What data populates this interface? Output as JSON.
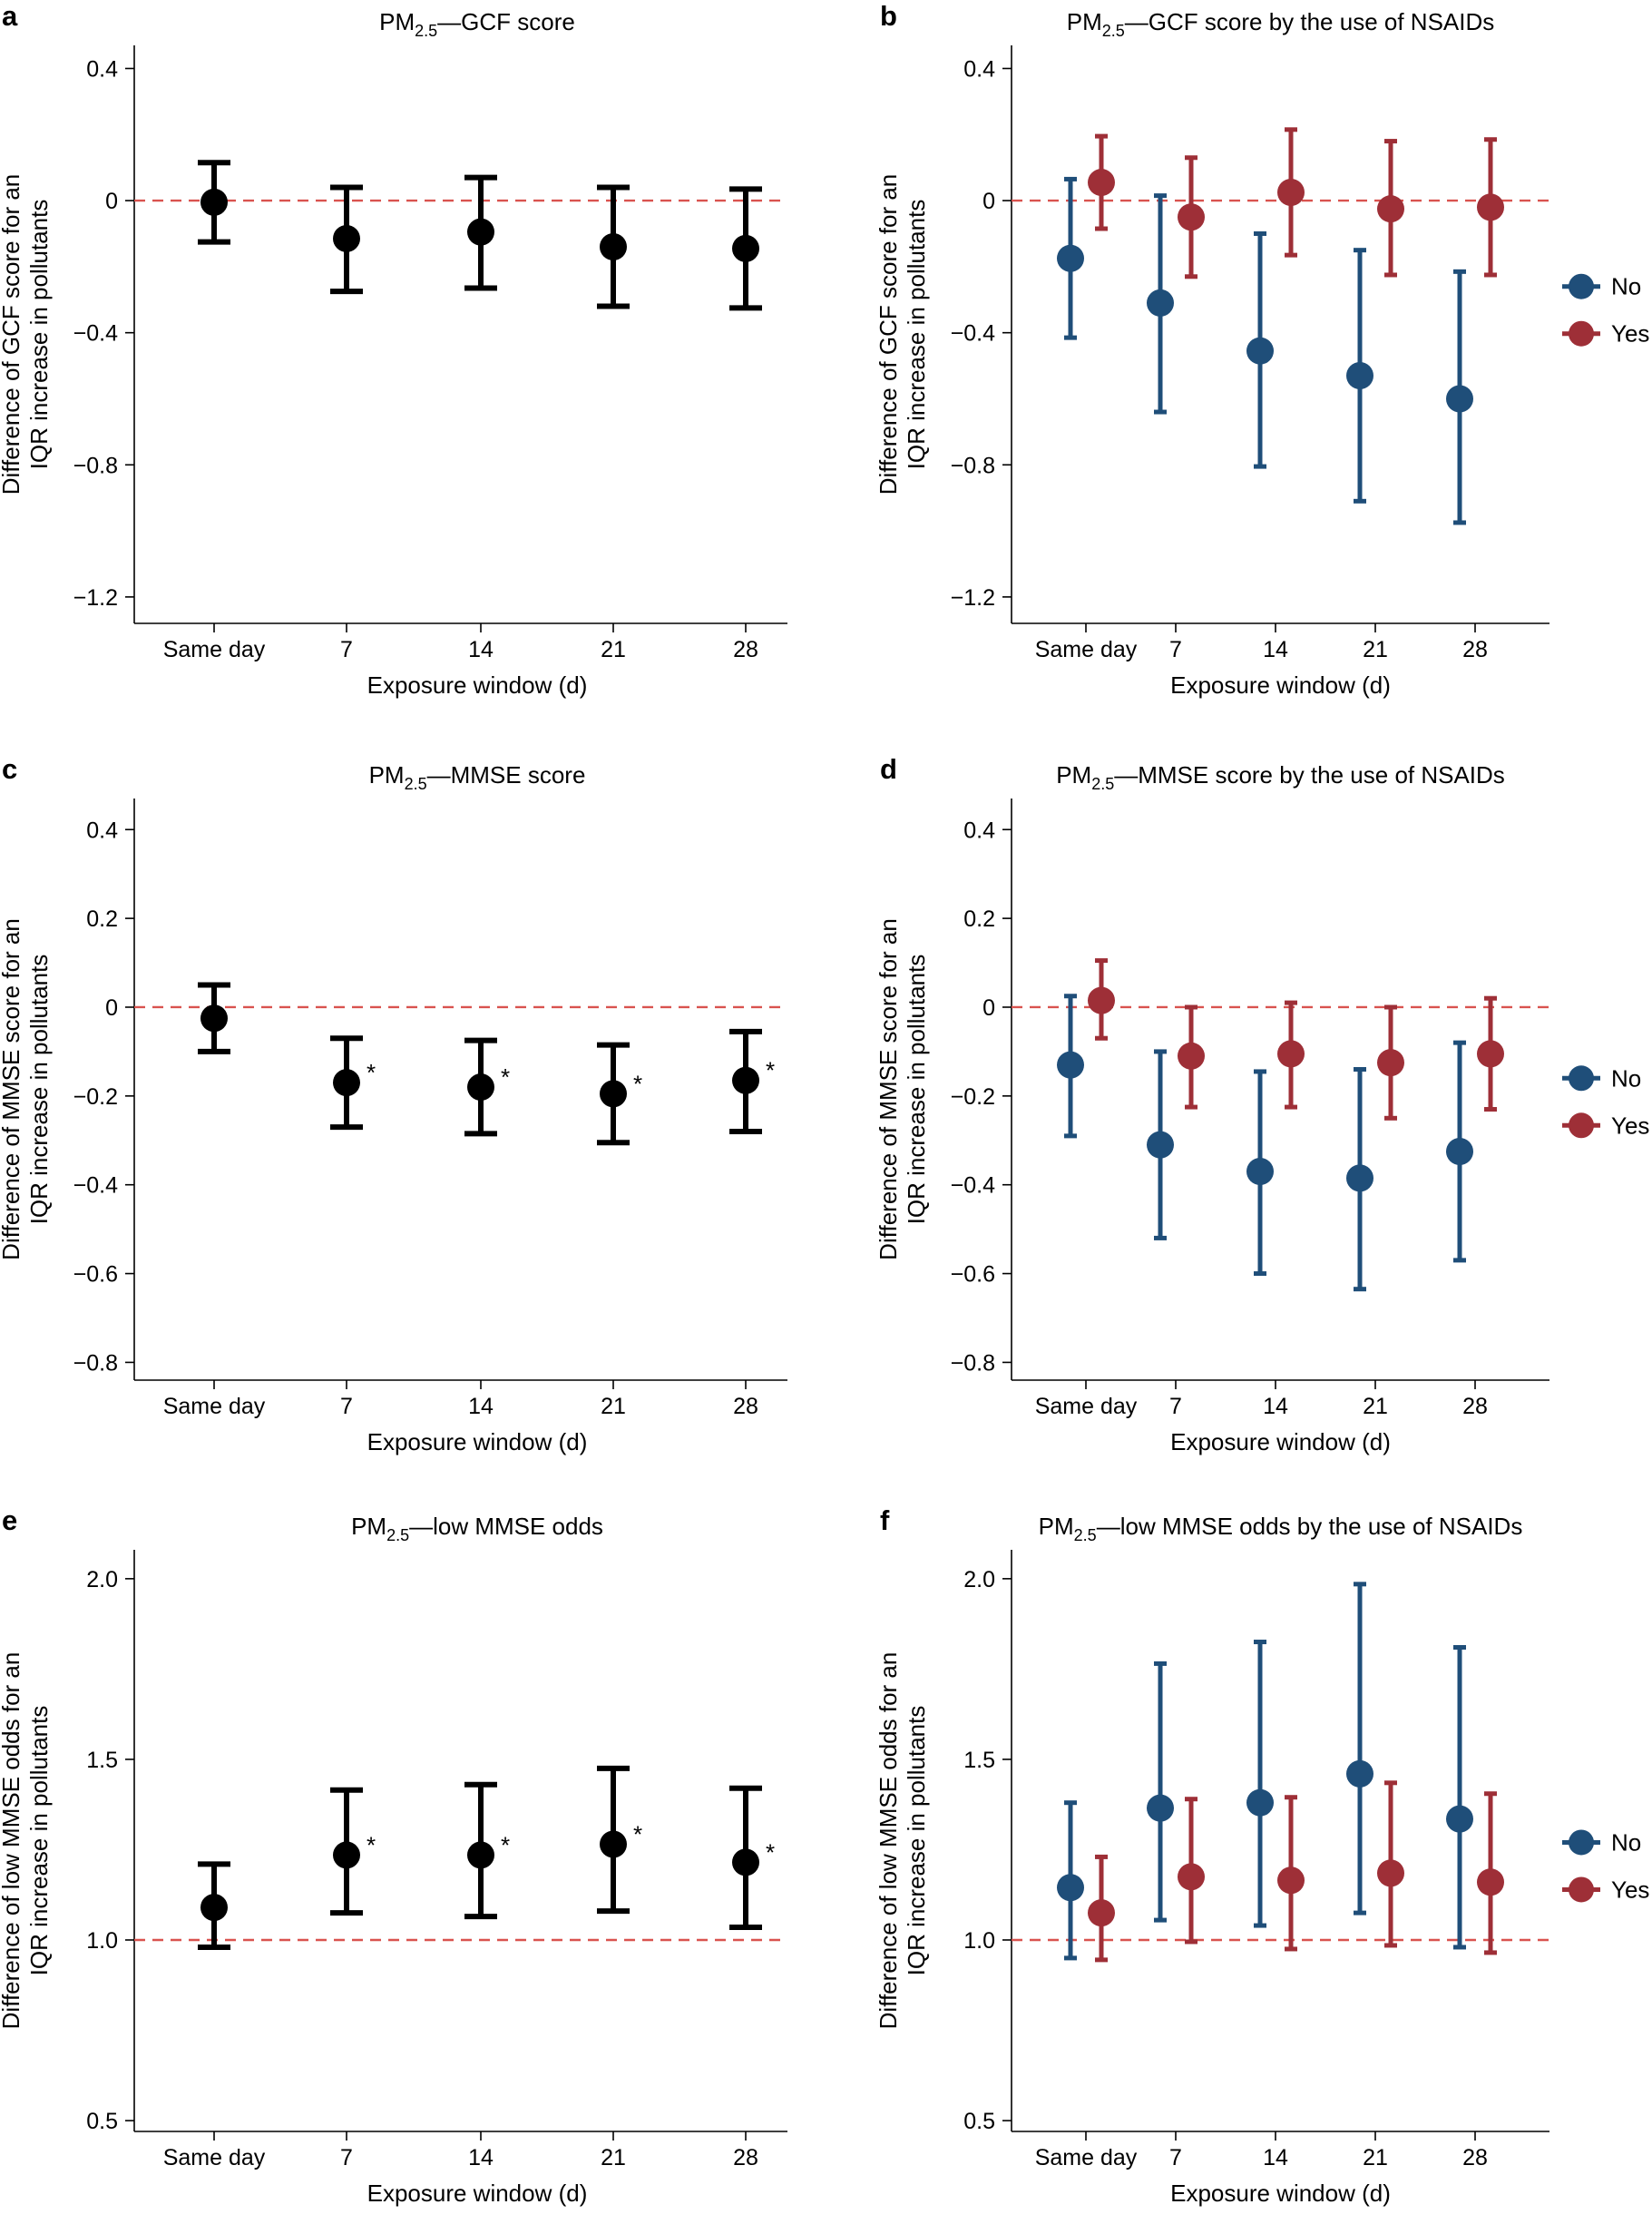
{
  "figure": {
    "refline_color": "#d9534f",
    "colors": {
      "overall": "#000000",
      "no": "#1f4e79",
      "yes": "#9e2f37"
    },
    "legend": {
      "no": "No",
      "yes": "Yes"
    },
    "significance_marker": "*"
  },
  "chart_data": [
    {
      "panel": "a",
      "type": "scatter",
      "title_prefix": "PM",
      "title_sub": "2.5",
      "title_rest": "—GCF score",
      "xlabel": "Exposure window (d)",
      "ylabel_lines": [
        "Difference of GCF score for an",
        "IQR increase in pollutants"
      ],
      "categories": [
        "Same day",
        "7",
        "14",
        "21",
        "28"
      ],
      "ylim": [
        -1.28,
        0.47
      ],
      "yticks": [
        0.4,
        0,
        -0.4,
        -0.8,
        -1.2
      ],
      "ytick_labels": [
        "0.4",
        "0",
        "−0.4",
        "−0.8",
        "−1.2"
      ],
      "refline": 0,
      "legend": false,
      "series": [
        {
          "name": "Overall",
          "color": "#000000",
          "estimate": [
            -0.005,
            -0.115,
            -0.095,
            -0.14,
            -0.145
          ],
          "lower": [
            -0.125,
            -0.275,
            -0.265,
            -0.32,
            -0.325
          ],
          "upper": [
            0.115,
            0.04,
            0.07,
            0.04,
            0.035
          ],
          "significant": [
            false,
            false,
            false,
            false,
            false
          ]
        }
      ]
    },
    {
      "panel": "b",
      "type": "scatter",
      "title_prefix": "PM",
      "title_sub": "2.5",
      "title_rest": "—GCF score by the use of NSAIDs",
      "xlabel": "Exposure window (d)",
      "ylabel_lines": [
        "Difference of GCF score for an",
        "IQR increase in pollutants"
      ],
      "categories": [
        "Same day",
        "7",
        "14",
        "21",
        "28"
      ],
      "ylim": [
        -1.28,
        0.47
      ],
      "yticks": [
        0.4,
        0,
        -0.4,
        -0.8,
        -1.2
      ],
      "ytick_labels": [
        "0.4",
        "0",
        "−0.4",
        "−0.8",
        "−1.2"
      ],
      "refline": 0,
      "legend": true,
      "series": [
        {
          "name": "No",
          "color": "#1f4e79",
          "estimate": [
            -0.175,
            -0.31,
            -0.455,
            -0.53,
            -0.6
          ],
          "lower": [
            -0.415,
            -0.64,
            -0.805,
            -0.91,
            -0.975
          ],
          "upper": [
            0.065,
            0.015,
            -0.1,
            -0.15,
            -0.215
          ],
          "significant": [
            false,
            false,
            false,
            false,
            false
          ]
        },
        {
          "name": "Yes",
          "color": "#9e2f37",
          "estimate": [
            0.055,
            -0.05,
            0.025,
            -0.025,
            -0.02
          ],
          "lower": [
            -0.085,
            -0.23,
            -0.165,
            -0.225,
            -0.225
          ],
          "upper": [
            0.195,
            0.13,
            0.215,
            0.18,
            0.185
          ],
          "significant": [
            false,
            false,
            false,
            false,
            false
          ]
        }
      ]
    },
    {
      "panel": "c",
      "type": "scatter",
      "title_prefix": "PM",
      "title_sub": "2.5",
      "title_rest": "—MMSE score",
      "xlabel": "Exposure window (d)",
      "ylabel_lines": [
        "Difference of MMSE score for an",
        "IQR increase in pollutants"
      ],
      "categories": [
        "Same day",
        "7",
        "14",
        "21",
        "28"
      ],
      "ylim": [
        -0.84,
        0.47
      ],
      "yticks": [
        0.4,
        0.2,
        0,
        -0.2,
        -0.4,
        -0.6,
        -0.8
      ],
      "ytick_labels": [
        "0.4",
        "0.2",
        "0",
        "−0.2",
        "−0.4",
        "−0.6",
        "−0.8"
      ],
      "refline": 0,
      "legend": false,
      "series": [
        {
          "name": "Overall",
          "color": "#000000",
          "estimate": [
            -0.025,
            -0.17,
            -0.18,
            -0.195,
            -0.165
          ],
          "lower": [
            -0.1,
            -0.27,
            -0.285,
            -0.305,
            -0.28
          ],
          "upper": [
            0.05,
            -0.07,
            -0.075,
            -0.085,
            -0.055
          ],
          "significant": [
            false,
            true,
            true,
            true,
            true
          ]
        }
      ]
    },
    {
      "panel": "d",
      "type": "scatter",
      "title_prefix": "PM",
      "title_sub": "2.5",
      "title_rest": "—MMSE score by the use of NSAIDs",
      "xlabel": "Exposure window (d)",
      "ylabel_lines": [
        "Difference of MMSE score for an",
        "IQR increase in pollutants"
      ],
      "categories": [
        "Same day",
        "7",
        "14",
        "21",
        "28"
      ],
      "ylim": [
        -0.84,
        0.47
      ],
      "yticks": [
        0.4,
        0.2,
        0,
        -0.2,
        -0.4,
        -0.6,
        -0.8
      ],
      "ytick_labels": [
        "0.4",
        "0.2",
        "0",
        "−0.2",
        "−0.4",
        "−0.6",
        "−0.8"
      ],
      "refline": 0,
      "legend": true,
      "series": [
        {
          "name": "No",
          "color": "#1f4e79",
          "estimate": [
            -0.13,
            -0.31,
            -0.37,
            -0.385,
            -0.325
          ],
          "lower": [
            -0.29,
            -0.52,
            -0.6,
            -0.635,
            -0.57
          ],
          "upper": [
            0.025,
            -0.1,
            -0.145,
            -0.14,
            -0.08
          ],
          "significant": [
            false,
            false,
            false,
            false,
            false
          ]
        },
        {
          "name": "Yes",
          "color": "#9e2f37",
          "estimate": [
            0.015,
            -0.11,
            -0.105,
            -0.125,
            -0.105
          ],
          "lower": [
            -0.07,
            -0.225,
            -0.225,
            -0.25,
            -0.23
          ],
          "upper": [
            0.105,
            0.0,
            0.01,
            0.0,
            0.02
          ],
          "significant": [
            false,
            false,
            false,
            false,
            false
          ]
        }
      ]
    },
    {
      "panel": "e",
      "type": "scatter",
      "title_prefix": "PM",
      "title_sub": "2.5",
      "title_rest": "—low MMSE odds",
      "xlabel": "Exposure window (d)",
      "ylabel_lines": [
        "Difference of low MMSE odds for an",
        "IQR increase in pollutants"
      ],
      "categories": [
        "Same day",
        "7",
        "14",
        "21",
        "28"
      ],
      "ylim": [
        0.47,
        2.08
      ],
      "yticks": [
        2.0,
        1.5,
        1.0,
        0.5
      ],
      "ytick_labels": [
        "2.0",
        "1.5",
        "1.0",
        "0.5"
      ],
      "refline": 1.0,
      "legend": false,
      "series": [
        {
          "name": "Overall",
          "color": "#000000",
          "estimate": [
            1.09,
            1.235,
            1.235,
            1.265,
            1.215
          ],
          "lower": [
            0.98,
            1.075,
            1.065,
            1.08,
            1.035
          ],
          "upper": [
            1.21,
            1.415,
            1.43,
            1.475,
            1.42
          ],
          "significant": [
            false,
            true,
            true,
            true,
            true
          ]
        }
      ]
    },
    {
      "panel": "f",
      "type": "scatter",
      "title_prefix": "PM",
      "title_sub": "2.5",
      "title_rest": "—low MMSE odds by the use of NSAIDs",
      "xlabel": "Exposure window (d)",
      "ylabel_lines": [
        "Difference of low MMSE odds for an",
        "IQR increase in pollutants"
      ],
      "categories": [
        "Same day",
        "7",
        "14",
        "21",
        "28"
      ],
      "ylim": [
        0.47,
        2.08
      ],
      "yticks": [
        2.0,
        1.5,
        1.0,
        0.5
      ],
      "ytick_labels": [
        "2.0",
        "1.5",
        "1.0",
        "0.5"
      ],
      "refline": 1.0,
      "legend": true,
      "series": [
        {
          "name": "No",
          "color": "#1f4e79",
          "estimate": [
            1.145,
            1.365,
            1.38,
            1.46,
            1.335
          ],
          "lower": [
            0.95,
            1.055,
            1.04,
            1.075,
            0.98
          ],
          "upper": [
            1.38,
            1.765,
            1.825,
            1.985,
            1.81
          ],
          "significant": [
            false,
            false,
            false,
            false,
            false
          ]
        },
        {
          "name": "Yes",
          "color": "#9e2f37",
          "estimate": [
            1.075,
            1.175,
            1.165,
            1.185,
            1.16
          ],
          "lower": [
            0.945,
            0.995,
            0.975,
            0.985,
            0.965
          ],
          "upper": [
            1.23,
            1.39,
            1.395,
            1.435,
            1.405
          ],
          "significant": [
            false,
            false,
            false,
            false,
            false
          ]
        }
      ]
    }
  ]
}
